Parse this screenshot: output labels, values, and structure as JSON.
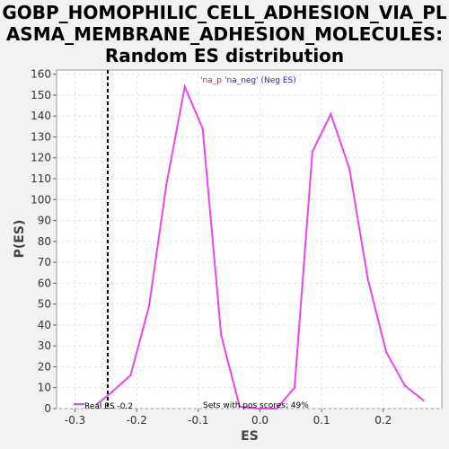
{
  "chart_data": {
    "type": "line",
    "title_lines": [
      "GOBP_HOMOPHILIC_CELL_ADHESION_VIA_PL",
      "ASMA_MEMBRANE_ADHESION_MOLECULES:",
      "Random ES distribution"
    ],
    "xlabel": "ES",
    "ylabel": "P(ES)",
    "xlim": [
      -0.33,
      0.295
    ],
    "ylim": [
      0,
      162
    ],
    "x_ticks": [
      -0.3,
      -0.2,
      -0.1,
      0.0,
      0.1,
      0.2
    ],
    "x_tick_labels": [
      "-0.3",
      "-0.2",
      "-0.1",
      "0.0",
      "0.1",
      "0.2"
    ],
    "y_ticks": [
      0,
      10,
      20,
      30,
      40,
      50,
      60,
      70,
      80,
      90,
      100,
      110,
      120,
      130,
      140,
      150,
      160
    ],
    "grid": true,
    "series": [
      {
        "color": "#ee44ee",
        "x": [
          -0.265,
          -0.24,
          -0.21,
          -0.18,
          -0.152,
          -0.122,
          -0.093,
          -0.063,
          -0.033,
          -0.003,
          0.027,
          0.056,
          0.085,
          0.115,
          0.145,
          0.175,
          0.205,
          0.235,
          0.265
        ],
        "y": [
          2,
          8,
          16,
          49,
          107,
          154,
          134,
          35,
          1,
          0,
          0,
          10,
          123,
          141,
          115,
          62,
          27,
          11,
          4
        ]
      }
    ],
    "real_es": -0.247,
    "legend_label": "Real ES -0.2",
    "annotation_red": "'na_p",
    "annotation_blue": "'na_neg' (Neg ES)",
    "pos_scores_text": "Sets with pos scores: 49%"
  }
}
